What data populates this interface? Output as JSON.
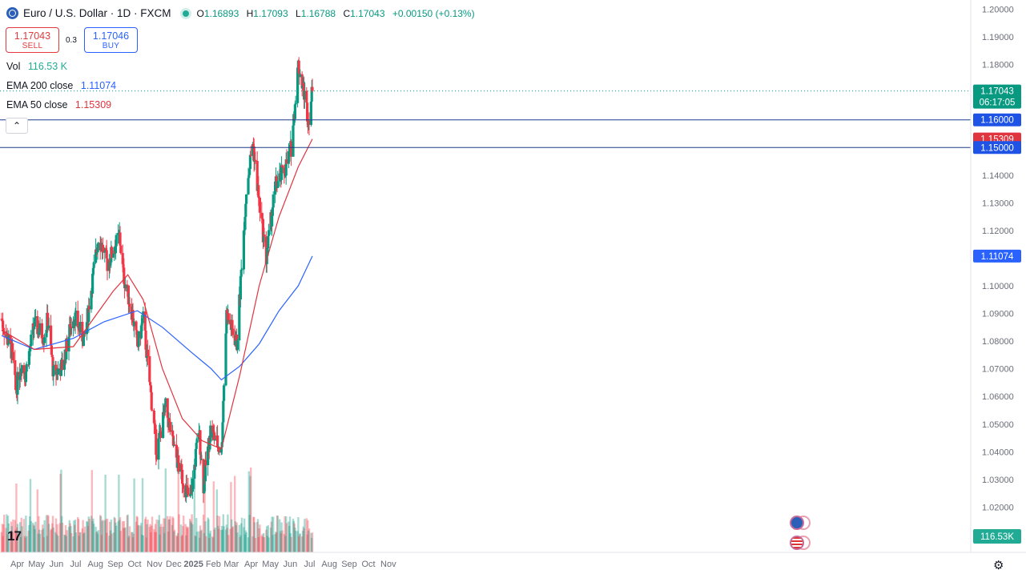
{
  "header": {
    "symbol_title": "Euro / U.S. Dollar · 1D · FXCM",
    "ohlc": [
      {
        "k": "O",
        "v": "1.16893"
      },
      {
        "k": "H",
        "v": "1.17093"
      },
      {
        "k": "L",
        "v": "1.16788"
      },
      {
        "k": "C",
        "v": "1.17043"
      },
      {
        "k": "",
        "v": "+0.00150 (+0.13%)"
      }
    ]
  },
  "trade": {
    "sell_price": "1.17043",
    "sell_label": "SELL",
    "spread": "0.3",
    "buy_price": "1.17046",
    "buy_label": "BUY"
  },
  "indicators": {
    "vol_label": "Vol",
    "vol_value": "116.53 K",
    "ema200_label": "EMA 200 close",
    "ema200_value": "1.11074",
    "ema50_label": "EMA 50 close",
    "ema50_value": "1.15309"
  },
  "colors": {
    "up": "#089981",
    "down": "#f23645",
    "ema200": "#2962ff",
    "ema50": "#e0343f",
    "hline": "#1e3a8a"
  },
  "icons": {
    "logo": "tradingview-logo",
    "settings": "gear-icon",
    "collapse": "chevron-up-icon",
    "symbol": "globe-icon"
  },
  "chart_data": {
    "type": "candlestick",
    "title": "Euro / U.S. Dollar · 1D · FXCM",
    "ylim": [
      1.0,
      1.2
    ],
    "y_ticks": [
      "1.20000",
      "1.19000",
      "1.18000",
      "1.17000",
      "1.16000",
      "1.15000",
      "1.14000",
      "1.13000",
      "1.12000",
      "1.11000",
      "1.10000",
      "1.09000",
      "1.08000",
      "1.07000",
      "1.06000",
      "1.05000",
      "1.04000",
      "1.03000",
      "1.02000",
      "1.01000"
    ],
    "x_ticks": [
      "Apr",
      "May",
      "Jun",
      "Jul",
      "Aug",
      "Sep",
      "Oct",
      "Nov",
      "Dec",
      "2025",
      "Feb",
      "Mar",
      "Apr",
      "May",
      "Jun",
      "Jul",
      "Aug",
      "Sep",
      "Oct",
      "Nov"
    ],
    "price_path": [
      [
        "2024-03-25",
        1.088
      ],
      [
        "2024-04-01",
        1.082
      ],
      [
        "2024-04-10",
        1.076
      ],
      [
        "2024-04-16",
        1.062
      ],
      [
        "2024-04-25",
        1.072
      ],
      [
        "2024-05-01",
        1.068
      ],
      [
        "2024-05-15",
        1.086
      ],
      [
        "2024-05-30",
        1.082
      ],
      [
        "2024-06-05",
        1.088
      ],
      [
        "2024-06-14",
        1.068
      ],
      [
        "2024-06-28",
        1.071
      ],
      [
        "2024-07-15",
        1.09
      ],
      [
        "2024-08-01",
        1.08
      ],
      [
        "2024-08-23",
        1.118
      ],
      [
        "2024-09-06",
        1.108
      ],
      [
        "2024-09-25",
        1.118
      ],
      [
        "2024-10-01",
        1.104
      ],
      [
        "2024-10-15",
        1.09
      ],
      [
        "2024-10-23",
        1.078
      ],
      [
        "2024-11-01",
        1.088
      ],
      [
        "2024-11-08",
        1.072
      ],
      [
        "2024-11-22",
        1.04
      ],
      [
        "2024-12-06",
        1.056
      ],
      [
        "2024-12-20",
        1.04
      ],
      [
        "2025-01-02",
        1.03
      ],
      [
        "2025-01-13",
        1.022
      ],
      [
        "2025-01-27",
        1.048
      ],
      [
        "2025-02-03",
        1.028
      ],
      [
        "2025-02-14",
        1.048
      ],
      [
        "2025-03-03",
        1.04
      ],
      [
        "2025-03-11",
        1.09
      ],
      [
        "2025-03-27",
        1.079
      ],
      [
        "2025-04-03",
        1.105
      ],
      [
        "2025-04-11",
        1.135
      ],
      [
        "2025-04-21",
        1.152
      ],
      [
        "2025-05-01",
        1.13
      ],
      [
        "2025-05-12",
        1.11
      ],
      [
        "2025-05-26",
        1.136
      ],
      [
        "2025-06-10",
        1.142
      ],
      [
        "2025-06-20",
        1.15
      ],
      [
        "2025-07-01",
        1.18
      ],
      [
        "2025-07-10",
        1.17
      ],
      [
        "2025-07-17",
        1.16
      ],
      [
        "2025-07-23",
        1.1704
      ]
    ],
    "ema200_path": [
      [
        "2024-03-25",
        1.082
      ],
      [
        "2024-05-15",
        1.077
      ],
      [
        "2024-07-15",
        1.081
      ],
      [
        "2024-09-01",
        1.087
      ],
      [
        "2024-10-23",
        1.091
      ],
      [
        "2024-12-01",
        1.085
      ],
      [
        "2025-01-15",
        1.076
      ],
      [
        "2025-02-15",
        1.07
      ],
      [
        "2025-03-03",
        1.066
      ],
      [
        "2025-04-01",
        1.071
      ],
      [
        "2025-05-01",
        1.079
      ],
      [
        "2025-06-01",
        1.091
      ],
      [
        "2025-07-01",
        1.1
      ],
      [
        "2025-07-23",
        1.11074
      ]
    ],
    "ema50_path": [
      [
        "2024-03-25",
        1.084
      ],
      [
        "2024-05-15",
        1.077
      ],
      [
        "2024-07-15",
        1.078
      ],
      [
        "2024-09-15",
        1.098
      ],
      [
        "2024-10-08",
        1.104
      ],
      [
        "2024-11-01",
        1.095
      ],
      [
        "2024-12-01",
        1.07
      ],
      [
        "2025-01-01",
        1.052
      ],
      [
        "2025-02-01",
        1.044
      ],
      [
        "2025-03-03",
        1.041
      ],
      [
        "2025-04-01",
        1.068
      ],
      [
        "2025-05-01",
        1.1
      ],
      [
        "2025-06-01",
        1.125
      ],
      [
        "2025-07-01",
        1.143
      ],
      [
        "2025-07-23",
        1.15309
      ]
    ],
    "horizontal_lines": [
      1.16,
      1.15
    ],
    "last_price": "1.17043",
    "countdown": "06:17:05",
    "price_labels": {
      "level_high": "1.16000",
      "ema50": "1.15309",
      "level_low": "1.15000",
      "ema200": "1.11074",
      "volume": "116.53K"
    }
  }
}
